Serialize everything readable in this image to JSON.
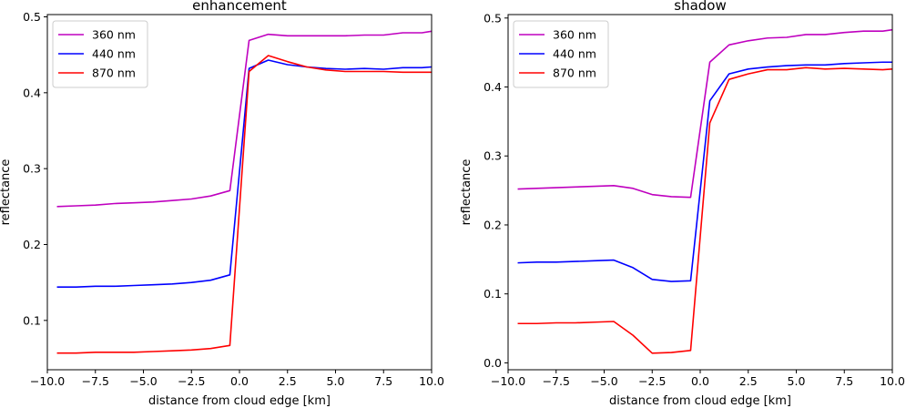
{
  "chart_data": [
    {
      "type": "line",
      "title": "enhancement",
      "xlabel": "distance from cloud edge [km]",
      "ylabel": "reflectance",
      "xlim": [
        -10,
        10
      ],
      "ylim": [
        0.035,
        0.503
      ],
      "xticks": [
        -10,
        -7.5,
        -5,
        -2.5,
        0,
        2.5,
        5,
        7.5,
        10
      ],
      "xtick_labels": [
        "−10.0",
        "−7.5",
        "−5.0",
        "−2.5",
        "0.0",
        "2.5",
        "5.0",
        "7.5",
        "10.0"
      ],
      "yticks": [
        0.1,
        0.2,
        0.3,
        0.4,
        0.5
      ],
      "ytick_labels": [
        "0.1",
        "0.2",
        "0.3",
        "0.4",
        "0.5"
      ],
      "legend": "top-left",
      "grid": false,
      "x": [
        -9.5,
        -8.5,
        -7.5,
        -6.5,
        -5.5,
        -4.5,
        -3.5,
        -2.5,
        -1.5,
        -0.5,
        0.5,
        1.5,
        2.5,
        3.5,
        4.5,
        5.5,
        6.5,
        7.5,
        8.5,
        9.5,
        10.0
      ],
      "series": [
        {
          "name": "360 nm",
          "color": "#bf00bf",
          "values": [
            0.25,
            0.251,
            0.252,
            0.254,
            0.255,
            0.256,
            0.258,
            0.26,
            0.264,
            0.271,
            0.469,
            0.477,
            0.475,
            0.475,
            0.475,
            0.475,
            0.476,
            0.476,
            0.479,
            0.479,
            0.481
          ]
        },
        {
          "name": "440 nm",
          "color": "#0000ff",
          "values": [
            0.144,
            0.144,
            0.145,
            0.145,
            0.146,
            0.147,
            0.148,
            0.15,
            0.153,
            0.16,
            0.432,
            0.443,
            0.437,
            0.434,
            0.432,
            0.431,
            0.432,
            0.431,
            0.433,
            0.433,
            0.434
          ]
        },
        {
          "name": "870 nm",
          "color": "#ff0000",
          "values": [
            0.057,
            0.057,
            0.058,
            0.058,
            0.058,
            0.059,
            0.06,
            0.061,
            0.063,
            0.067,
            0.428,
            0.449,
            0.441,
            0.434,
            0.43,
            0.428,
            0.428,
            0.428,
            0.427,
            0.427,
            0.427
          ]
        }
      ]
    },
    {
      "type": "line",
      "title": "shadow",
      "xlabel": "distance from cloud edge [km]",
      "ylabel": "reflectance",
      "xlim": [
        -10,
        10
      ],
      "ylim": [
        -0.01,
        0.505
      ],
      "xticks": [
        -10,
        -7.5,
        -5,
        -2.5,
        0,
        2.5,
        5,
        7.5,
        10
      ],
      "xtick_labels": [
        "−10.0",
        "−7.5",
        "−5.0",
        "−2.5",
        "0.0",
        "2.5",
        "5.0",
        "7.5",
        "10.0"
      ],
      "yticks": [
        0.0,
        0.1,
        0.2,
        0.3,
        0.4,
        0.5
      ],
      "ytick_labels": [
        "0.0",
        "0.1",
        "0.2",
        "0.3",
        "0.4",
        "0.5"
      ],
      "legend": "top-left",
      "grid": false,
      "x": [
        -9.5,
        -8.5,
        -7.5,
        -6.5,
        -5.5,
        -4.5,
        -3.5,
        -2.5,
        -1.5,
        -0.5,
        0.5,
        1.5,
        2.5,
        3.5,
        4.5,
        5.5,
        6.5,
        7.5,
        8.5,
        9.5,
        10.0
      ],
      "series": [
        {
          "name": "360 nm",
          "color": "#bf00bf",
          "values": [
            0.252,
            0.253,
            0.254,
            0.255,
            0.256,
            0.257,
            0.253,
            0.244,
            0.241,
            0.24,
            0.436,
            0.461,
            0.467,
            0.471,
            0.472,
            0.476,
            0.476,
            0.479,
            0.481,
            0.481,
            0.483
          ]
        },
        {
          "name": "440 nm",
          "color": "#0000ff",
          "values": [
            0.145,
            0.146,
            0.146,
            0.147,
            0.148,
            0.149,
            0.138,
            0.121,
            0.118,
            0.119,
            0.38,
            0.419,
            0.426,
            0.429,
            0.431,
            0.432,
            0.432,
            0.434,
            0.435,
            0.436,
            0.436
          ]
        },
        {
          "name": "870 nm",
          "color": "#ff0000",
          "values": [
            0.057,
            0.057,
            0.058,
            0.058,
            0.059,
            0.06,
            0.04,
            0.014,
            0.015,
            0.018,
            0.348,
            0.411,
            0.419,
            0.425,
            0.425,
            0.428,
            0.426,
            0.427,
            0.426,
            0.425,
            0.426
          ]
        }
      ]
    }
  ]
}
